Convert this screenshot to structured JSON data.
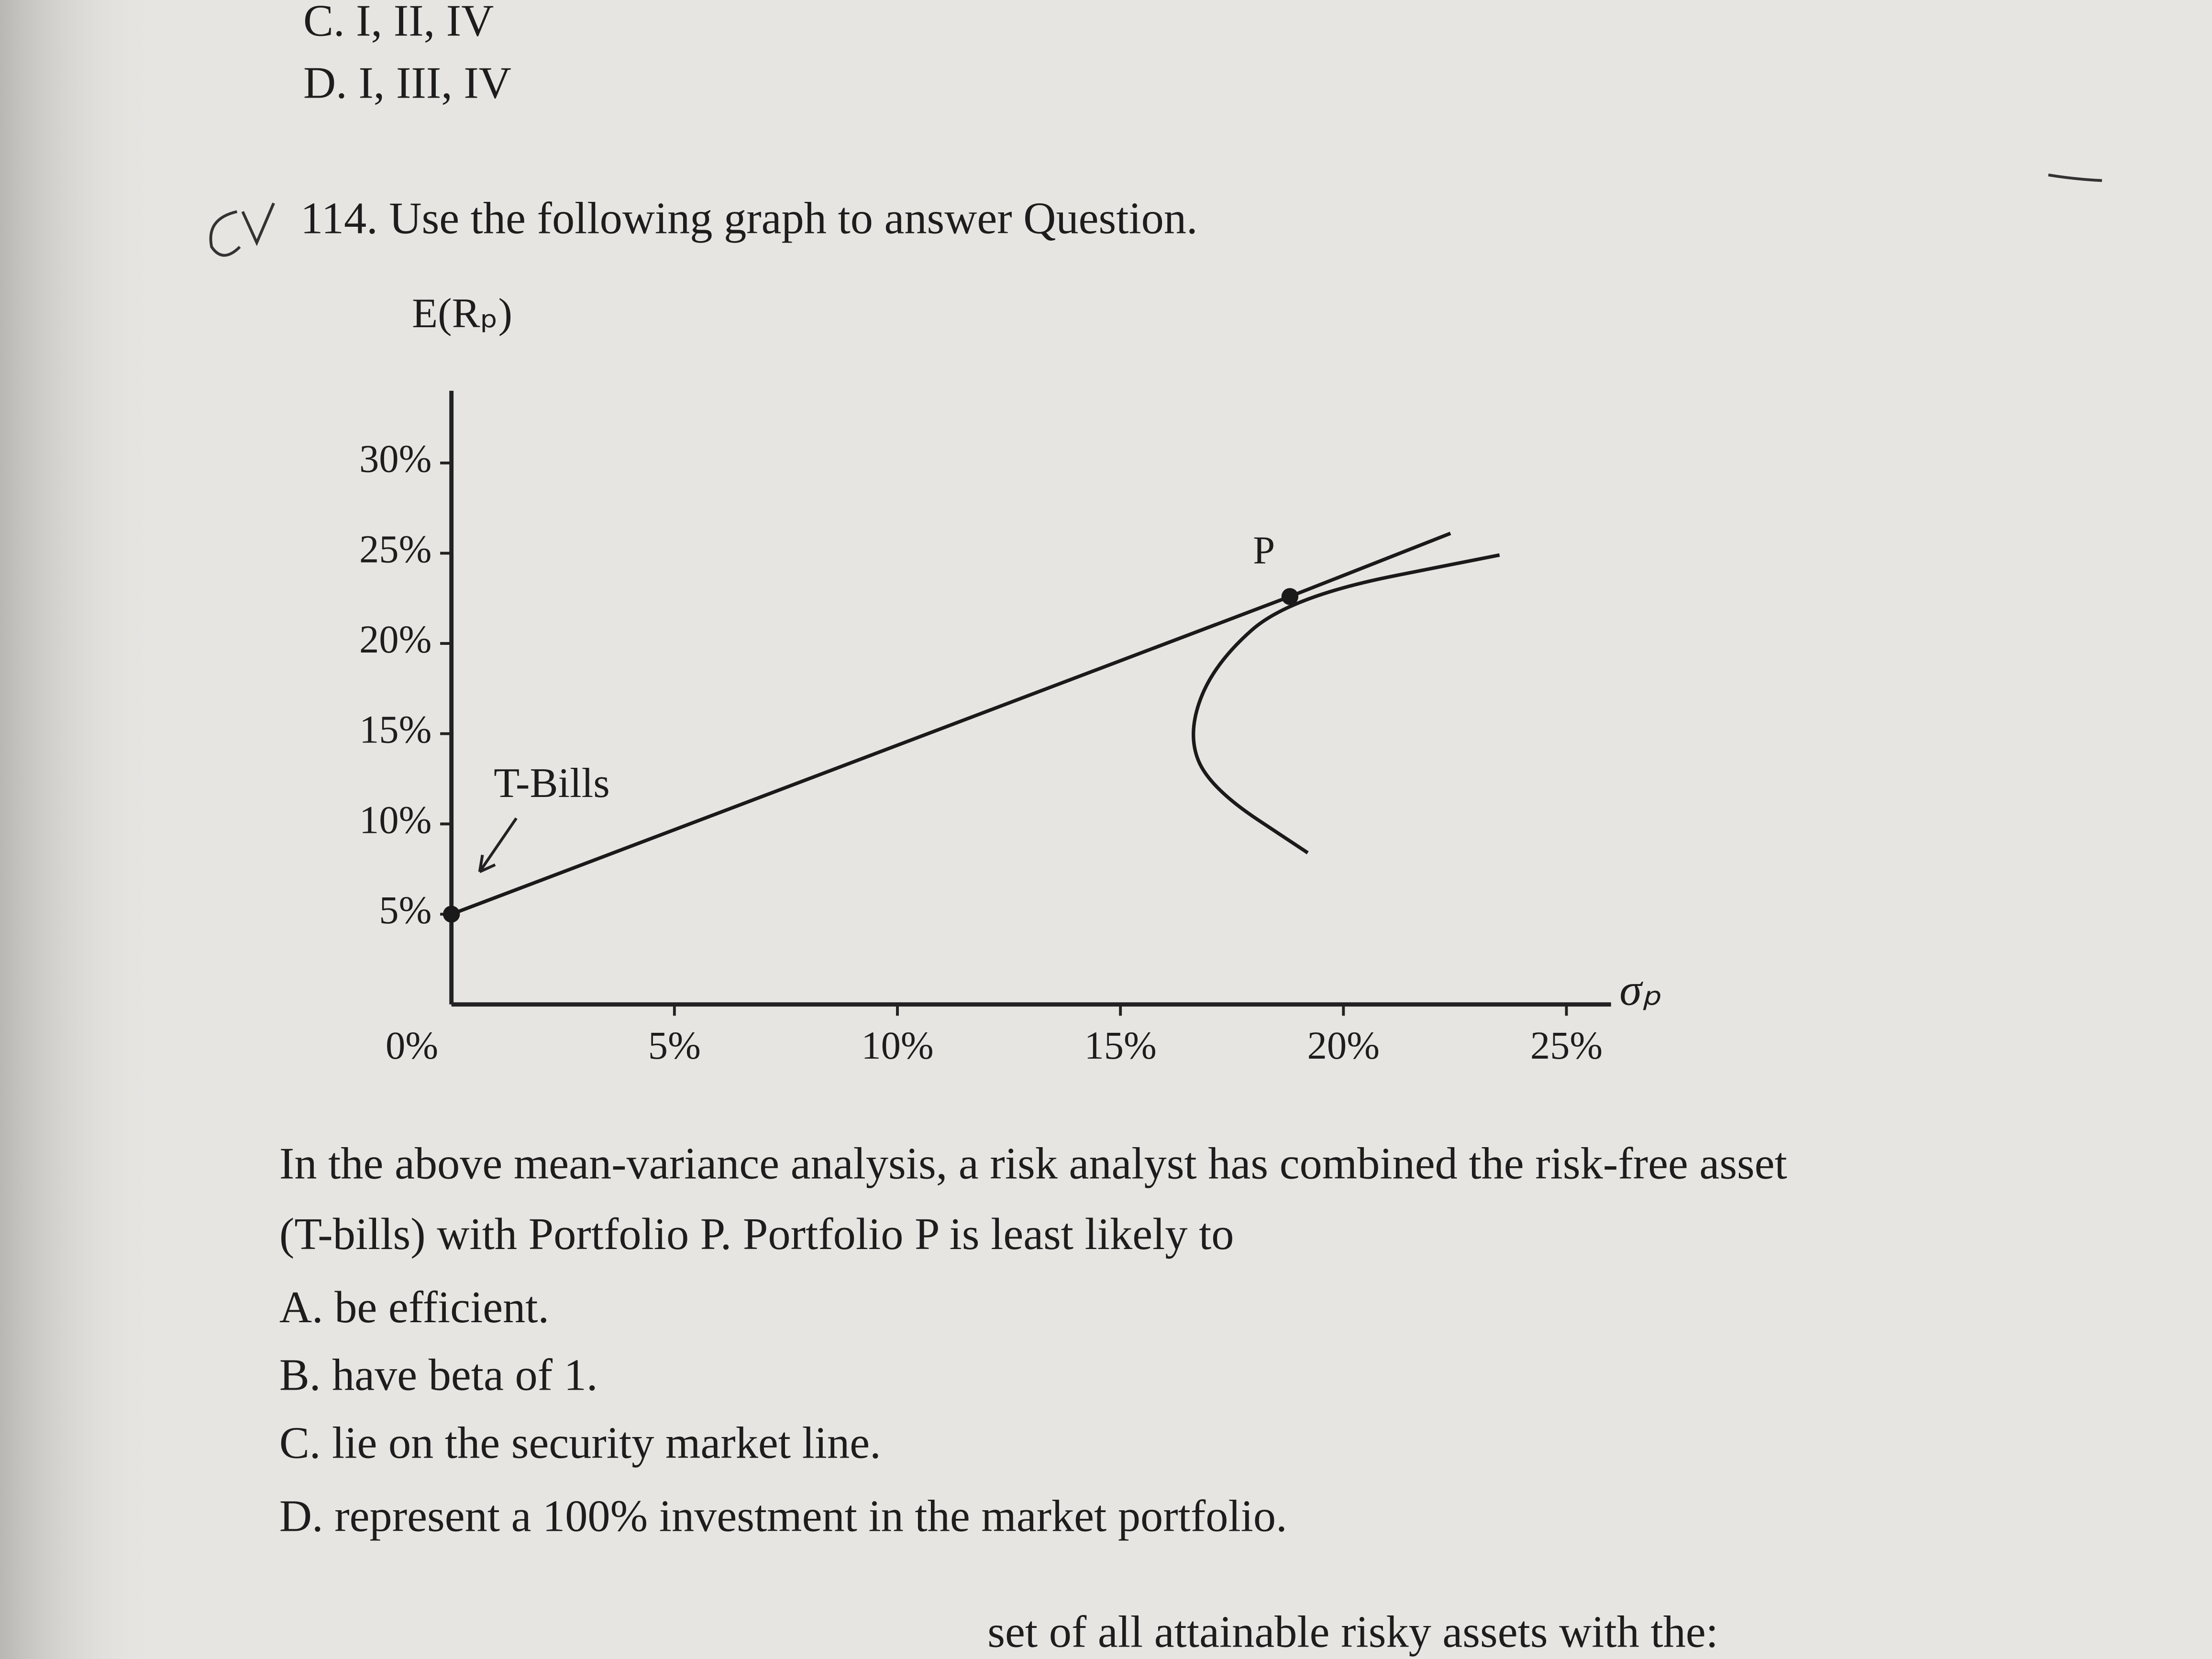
{
  "header": {
    "options": [
      "C. I, II, IV",
      "D. I, III, IV"
    ]
  },
  "question": {
    "prompt": "114. Use the following graph to answer Question."
  },
  "chart_data": {
    "type": "line",
    "y_label": "E(Rₚ)",
    "x_label": "σₚ",
    "color": "#1a1a1a",
    "xlim": [
      0,
      26
    ],
    "ylim": [
      0,
      34
    ],
    "xticks": [
      {
        "value": 0,
        "label": "0%"
      },
      {
        "value": 5,
        "label": "5%"
      },
      {
        "value": 10,
        "label": "10%"
      },
      {
        "value": 15,
        "label": "15%"
      },
      {
        "value": 20,
        "label": "20%"
      },
      {
        "value": 25,
        "label": "25%"
      }
    ],
    "yticks": [
      {
        "value": 5,
        "label": "5%"
      },
      {
        "value": 10,
        "label": "10%"
      },
      {
        "value": 15,
        "label": "15%"
      },
      {
        "value": 20,
        "label": "20%"
      },
      {
        "value": 25,
        "label": "25%"
      },
      {
        "value": 30,
        "label": "30%"
      }
    ],
    "series": [
      {
        "x": [
          0,
          18.8,
          22.4
        ],
        "values": [
          5,
          22.6,
          26.1
        ]
      },
      {
        "x": [
          19.2,
          17.0,
          16.5,
          17.1,
          18.8,
          23.5
        ],
        "values": [
          8.4,
          12,
          15,
          18.9,
          22.6,
          24.9
        ]
      }
    ],
    "annotations": [
      "P",
      "T-Bills"
    ]
  },
  "body": {
    "lines": [
      "In the above mean-variance analysis, a risk analyst has combined the risk-free asset",
      "(T-bills) with Portfolio P. Portfolio P is least likely to"
    ],
    "choices": [
      "A. be efficient.",
      "B. have beta of 1.",
      "C. lie on the security market line.",
      "D. represent a 100% investment in the market portfolio."
    ]
  },
  "footer": {
    "text": "set of all attainable risky assets with the:"
  }
}
